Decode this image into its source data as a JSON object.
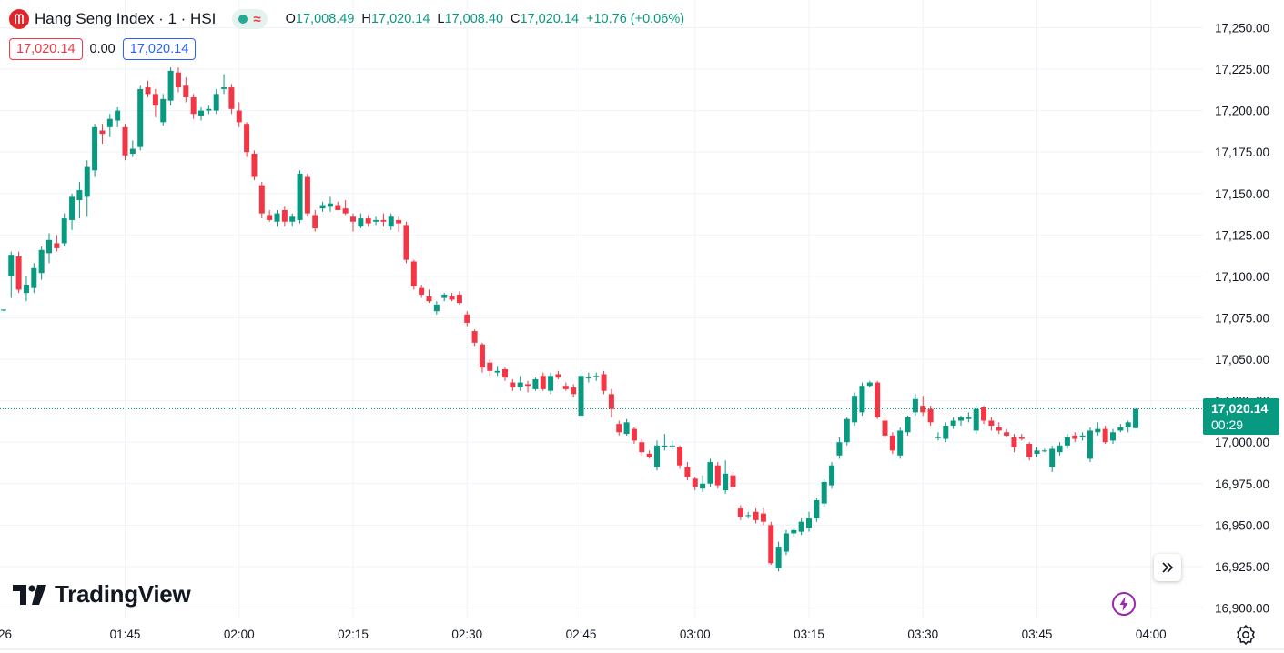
{
  "legend": {
    "title": "Hang Seng Index · 1 · HSI",
    "ohlc": [
      {
        "key": "O",
        "value": "17,008.49"
      },
      {
        "key": "H",
        "value": "17,020.14"
      },
      {
        "key": "L",
        "value": "17,008.40"
      },
      {
        "key": "C",
        "value": "17,020.14"
      }
    ],
    "change": "+10.76 (+0.06%)"
  },
  "price_boxes": {
    "sell": "17,020.14",
    "spread": "0.00",
    "buy": "17,020.14"
  },
  "last_price": {
    "value": "17,020.14",
    "countdown": "00:29"
  },
  "branding": {
    "text": "TradingView"
  },
  "colors": {
    "up": "#089981",
    "down": "#f23645",
    "accent": "#2962ff",
    "grid": "#f0f3fa"
  },
  "chart_data": {
    "type": "candlestick",
    "interval_minutes": 1,
    "y_ticks": [
      16900,
      16925,
      16950,
      16975,
      17000,
      17025,
      17050,
      17075,
      17100,
      17125,
      17150,
      17175,
      17200,
      17225,
      17250
    ],
    "y_tick_labels": [
      "16,900.00",
      "16,925.00",
      "16,950.00",
      "16,975.00",
      "17,000.00",
      "17,025.00",
      "17,050.00",
      "17,075.00",
      "17,100.00",
      "17,125.00",
      "17,150.00",
      "17,175.00",
      "17,200.00",
      "17,225.00",
      "17,250.00"
    ],
    "x_tick_labels": [
      "26",
      "01:45",
      "02:00",
      "02:15",
      "02:30",
      "02:45",
      "03:00",
      "03:15",
      "03:30",
      "03:45",
      "04:00"
    ],
    "candles": [
      {
        "t": "01:29",
        "o": 17080,
        "h": 17080,
        "l": 17079,
        "c": 17080
      },
      {
        "t": "01:30",
        "o": 17100,
        "h": 17115,
        "l": 17087,
        "c": 17113
      },
      {
        "t": "01:31",
        "o": 17112,
        "h": 17115,
        "l": 17090,
        "c": 17092
      },
      {
        "t": "01:32",
        "o": 17090,
        "h": 17100,
        "l": 17085,
        "c": 17095
      },
      {
        "t": "01:33",
        "o": 17093,
        "h": 17108,
        "l": 17090,
        "c": 17105
      },
      {
        "t": "01:34",
        "o": 17102,
        "h": 17118,
        "l": 17098,
        "c": 17116
      },
      {
        "t": "01:35",
        "o": 17114,
        "h": 17126,
        "l": 17108,
        "c": 17122
      },
      {
        "t": "01:36",
        "o": 17120,
        "h": 17125,
        "l": 17115,
        "c": 17117
      },
      {
        "t": "01:37",
        "o": 17120,
        "h": 17138,
        "l": 17118,
        "c": 17135
      },
      {
        "t": "01:38",
        "o": 17134,
        "h": 17150,
        "l": 17128,
        "c": 17148
      },
      {
        "t": "01:39",
        "o": 17146,
        "h": 17157,
        "l": 17135,
        "c": 17152
      },
      {
        "t": "01:40",
        "o": 17148,
        "h": 17170,
        "l": 17136,
        "c": 17166
      },
      {
        "t": "01:41",
        "o": 17164,
        "h": 17192,
        "l": 17160,
        "c": 17190
      },
      {
        "t": "01:42",
        "o": 17188,
        "h": 17192,
        "l": 17180,
        "c": 17186
      },
      {
        "t": "01:43",
        "o": 17190,
        "h": 17198,
        "l": 17184,
        "c": 17195
      },
      {
        "t": "01:44",
        "o": 17194,
        "h": 17202,
        "l": 17190,
        "c": 17200
      },
      {
        "t": "01:45",
        "o": 17190,
        "h": 17192,
        "l": 17170,
        "c": 17173
      },
      {
        "t": "01:46",
        "o": 17174,
        "h": 17182,
        "l": 17172,
        "c": 17177
      },
      {
        "t": "01:47",
        "o": 17178,
        "h": 17215,
        "l": 17176,
        "c": 17213
      },
      {
        "t": "01:48",
        "o": 17214,
        "h": 17218,
        "l": 17208,
        "c": 17210
      },
      {
        "t": "01:49",
        "o": 17210,
        "h": 17213,
        "l": 17196,
        "c": 17203
      },
      {
        "t": "01:50",
        "o": 17193,
        "h": 17210,
        "l": 17191,
        "c": 17207
      },
      {
        "t": "01:51",
        "o": 17206,
        "h": 17226,
        "l": 17203,
        "c": 17224
      },
      {
        "t": "01:52",
        "o": 17223,
        "h": 17226,
        "l": 17211,
        "c": 17214
      },
      {
        "t": "01:53",
        "o": 17215,
        "h": 17220,
        "l": 17205,
        "c": 17208
      },
      {
        "t": "01:54",
        "o": 17208,
        "h": 17210,
        "l": 17195,
        "c": 17198
      },
      {
        "t": "01:55",
        "o": 17197,
        "h": 17202,
        "l": 17194,
        "c": 17200
      },
      {
        "t": "01:56",
        "o": 17200,
        "h": 17203,
        "l": 17198,
        "c": 17201
      },
      {
        "t": "01:57",
        "o": 17200,
        "h": 17213,
        "l": 17198,
        "c": 17210
      },
      {
        "t": "01:58",
        "o": 17213,
        "h": 17222,
        "l": 17210,
        "c": 17214
      },
      {
        "t": "01:59",
        "o": 17214,
        "h": 17216,
        "l": 17198,
        "c": 17201
      },
      {
        "t": "02:00",
        "o": 17200,
        "h": 17205,
        "l": 17190,
        "c": 17193
      },
      {
        "t": "02:01",
        "o": 17192,
        "h": 17193,
        "l": 17172,
        "c": 17175
      },
      {
        "t": "02:02",
        "o": 17174,
        "h": 17176,
        "l": 17158,
        "c": 17160
      },
      {
        "t": "02:03",
        "o": 17155,
        "h": 17157,
        "l": 17135,
        "c": 17138
      },
      {
        "t": "02:04",
        "o": 17137,
        "h": 17140,
        "l": 17133,
        "c": 17134
      },
      {
        "t": "02:05",
        "o": 17133,
        "h": 17140,
        "l": 17130,
        "c": 17138
      },
      {
        "t": "02:06",
        "o": 17140,
        "h": 17142,
        "l": 17130,
        "c": 17133
      },
      {
        "t": "02:07",
        "o": 17133,
        "h": 17138,
        "l": 17130,
        "c": 17136
      },
      {
        "t": "02:08",
        "o": 17134,
        "h": 17164,
        "l": 17132,
        "c": 17162
      },
      {
        "t": "02:09",
        "o": 17160,
        "h": 17162,
        "l": 17136,
        "c": 17138
      },
      {
        "t": "02:10",
        "o": 17137,
        "h": 17140,
        "l": 17127,
        "c": 17129
      },
      {
        "t": "02:11",
        "o": 17141,
        "h": 17145,
        "l": 17139,
        "c": 17143
      },
      {
        "t": "02:12",
        "o": 17142,
        "h": 17148,
        "l": 17139,
        "c": 17144
      },
      {
        "t": "02:13",
        "o": 17143,
        "h": 17145,
        "l": 17140,
        "c": 17140
      },
      {
        "t": "02:14",
        "o": 17141,
        "h": 17146,
        "l": 17137,
        "c": 17138
      },
      {
        "t": "02:15",
        "o": 17136,
        "h": 17138,
        "l": 17127,
        "c": 17133
      },
      {
        "t": "02:16",
        "o": 17130,
        "h": 17138,
        "l": 17129,
        "c": 17135
      },
      {
        "t": "02:17",
        "o": 17135,
        "h": 17137,
        "l": 17130,
        "c": 17132
      },
      {
        "t": "02:18",
        "o": 17133,
        "h": 17136,
        "l": 17131,
        "c": 17134
      },
      {
        "t": "02:19",
        "o": 17134,
        "h": 17138,
        "l": 17130,
        "c": 17133
      },
      {
        "t": "02:20",
        "o": 17130,
        "h": 17138,
        "l": 17128,
        "c": 17136
      },
      {
        "t": "02:21",
        "o": 17134,
        "h": 17136,
        "l": 17127,
        "c": 17132
      },
      {
        "t": "02:22",
        "o": 17131,
        "h": 17133,
        "l": 17108,
        "c": 17110
      },
      {
        "t": "02:23",
        "o": 17109,
        "h": 17110,
        "l": 17092,
        "c": 17094
      },
      {
        "t": "02:24",
        "o": 17093,
        "h": 17095,
        "l": 17087,
        "c": 17089
      },
      {
        "t": "02:25",
        "o": 17088,
        "h": 17092,
        "l": 17084,
        "c": 17085
      },
      {
        "t": "02:26",
        "o": 17079,
        "h": 17085,
        "l": 17077,
        "c": 17083
      },
      {
        "t": "02:27",
        "o": 17087,
        "h": 17090,
        "l": 17085,
        "c": 17089
      },
      {
        "t": "02:28",
        "o": 17088,
        "h": 17090,
        "l": 17085,
        "c": 17086
      },
      {
        "t": "02:29",
        "o": 17089,
        "h": 17091,
        "l": 17083,
        "c": 17084
      },
      {
        "t": "02:30",
        "o": 17077,
        "h": 17079,
        "l": 17070,
        "c": 17072
      },
      {
        "t": "02:31",
        "o": 17067,
        "h": 17068,
        "l": 17058,
        "c": 17060
      },
      {
        "t": "02:32",
        "o": 17059,
        "h": 17060,
        "l": 17042,
        "c": 17045
      },
      {
        "t": "02:33",
        "o": 17048,
        "h": 17050,
        "l": 17040,
        "c": 17043
      },
      {
        "t": "02:34",
        "o": 17042,
        "h": 17046,
        "l": 17040,
        "c": 17043
      },
      {
        "t": "02:35",
        "o": 17044,
        "h": 17045,
        "l": 17037,
        "c": 17039
      },
      {
        "t": "02:36",
        "o": 17036,
        "h": 17038,
        "l": 17031,
        "c": 17033
      },
      {
        "t": "02:37",
        "o": 17033,
        "h": 17040,
        "l": 17031,
        "c": 17036
      },
      {
        "t": "02:38",
        "o": 17035,
        "h": 17037,
        "l": 17030,
        "c": 17034
      },
      {
        "t": "02:39",
        "o": 17032,
        "h": 17039,
        "l": 17031,
        "c": 17038
      },
      {
        "t": "02:40",
        "o": 17040,
        "h": 17042,
        "l": 17031,
        "c": 17032
      },
      {
        "t": "02:41",
        "o": 17031,
        "h": 17042,
        "l": 17029,
        "c": 17040
      },
      {
        "t": "02:42",
        "o": 17041,
        "h": 17043,
        "l": 17038,
        "c": 17039
      },
      {
        "t": "02:43",
        "o": 17034,
        "h": 17036,
        "l": 17031,
        "c": 17032
      },
      {
        "t": "02:44",
        "o": 17033,
        "h": 17035,
        "l": 17027,
        "c": 17029
      },
      {
        "t": "02:45",
        "o": 17016,
        "h": 17043,
        "l": 17014,
        "c": 17040
      },
      {
        "t": "02:46",
        "o": 17039,
        "h": 17042,
        "l": 17036,
        "c": 17039
      },
      {
        "t": "02:47",
        "o": 17040,
        "h": 17042,
        "l": 17037,
        "c": 17040
      },
      {
        "t": "02:48",
        "o": 17041,
        "h": 17043,
        "l": 17029,
        "c": 17031
      },
      {
        "t": "02:49",
        "o": 17029,
        "h": 17032,
        "l": 17015,
        "c": 17020
      },
      {
        "t": "02:50",
        "o": 17011,
        "h": 17013,
        "l": 17004,
        "c": 17006
      },
      {
        "t": "02:51",
        "o": 17005,
        "h": 17014,
        "l": 17004,
        "c": 17012
      },
      {
        "t": "02:52",
        "o": 17008,
        "h": 17009,
        "l": 16999,
        "c": 17001
      },
      {
        "t": "02:53",
        "o": 17000,
        "h": 17002,
        "l": 16992,
        "c": 16994
      },
      {
        "t": "02:54",
        "o": 16993,
        "h": 16995,
        "l": 16990,
        "c": 16991
      },
      {
        "t": "02:55",
        "o": 16985,
        "h": 17001,
        "l": 16983,
        "c": 16998
      },
      {
        "t": "02:56",
        "o": 16997,
        "h": 17005,
        "l": 16995,
        "c": 16998
      },
      {
        "t": "02:57",
        "o": 16998,
        "h": 17001,
        "l": 16996,
        "c": 16998
      },
      {
        "t": "02:58",
        "o": 16997,
        "h": 16998,
        "l": 16984,
        "c": 16986
      },
      {
        "t": "02:59",
        "o": 16985,
        "h": 16988,
        "l": 16977,
        "c": 16979
      },
      {
        "t": "03:00",
        "o": 16978,
        "h": 16979,
        "l": 16971,
        "c": 16973
      },
      {
        "t": "03:01",
        "o": 16972,
        "h": 16980,
        "l": 16970,
        "c": 16975
      },
      {
        "t": "03:02",
        "o": 16975,
        "h": 16990,
        "l": 16973,
        "c": 16988
      },
      {
        "t": "03:03",
        "o": 16986,
        "h": 16988,
        "l": 16972,
        "c": 16974
      },
      {
        "t": "03:04",
        "o": 16971,
        "h": 16989,
        "l": 16969,
        "c": 16981
      },
      {
        "t": "03:05",
        "o": 16980,
        "h": 16982,
        "l": 16971,
        "c": 16973
      },
      {
        "t": "03:06",
        "o": 16960,
        "h": 16962,
        "l": 16953,
        "c": 16955
      },
      {
        "t": "03:07",
        "o": 16956,
        "h": 16958,
        "l": 16954,
        "c": 16956
      },
      {
        "t": "03:08",
        "o": 16958,
        "h": 16960,
        "l": 16951,
        "c": 16953
      },
      {
        "t": "03:09",
        "o": 16957,
        "h": 16960,
        "l": 16950,
        "c": 16952
      },
      {
        "t": "03:10",
        "o": 16950,
        "h": 16952,
        "l": 16926,
        "c": 16927
      },
      {
        "t": "03:11",
        "o": 16924,
        "h": 16940,
        "l": 16922,
        "c": 16937
      },
      {
        "t": "03:12",
        "o": 16934,
        "h": 16947,
        "l": 16932,
        "c": 16945
      },
      {
        "t": "03:13",
        "o": 16945,
        "h": 16948,
        "l": 16943,
        "c": 16947
      },
      {
        "t": "03:14",
        "o": 16946,
        "h": 16954,
        "l": 16944,
        "c": 16952
      },
      {
        "t": "03:15",
        "o": 16948,
        "h": 16958,
        "l": 16946,
        "c": 16954
      },
      {
        "t": "03:16",
        "o": 16954,
        "h": 16966,
        "l": 16952,
        "c": 16965
      },
      {
        "t": "03:17",
        "o": 16963,
        "h": 16978,
        "l": 16961,
        "c": 16976
      },
      {
        "t": "03:18",
        "o": 16974,
        "h": 16988,
        "l": 16972,
        "c": 16986
      },
      {
        "t": "03:19",
        "o": 16992,
        "h": 17003,
        "l": 16990,
        "c": 17000
      },
      {
        "t": "03:20",
        "o": 17000,
        "h": 17015,
        "l": 16998,
        "c": 17014
      },
      {
        "t": "03:21",
        "o": 17012,
        "h": 17030,
        "l": 17010,
        "c": 17028
      },
      {
        "t": "03:22",
        "o": 17018,
        "h": 17036,
        "l": 17016,
        "c": 17034
      },
      {
        "t": "03:23",
        "o": 17034,
        "h": 17037,
        "l": 17033,
        "c": 17036
      },
      {
        "t": "03:24",
        "o": 17036,
        "h": 17037,
        "l": 17014,
        "c": 17015
      },
      {
        "t": "03:25",
        "o": 17013,
        "h": 17015,
        "l": 17002,
        "c": 17004
      },
      {
        "t": "03:26",
        "o": 17004,
        "h": 17006,
        "l": 16993,
        "c": 16995
      },
      {
        "t": "03:27",
        "o": 16992,
        "h": 17009,
        "l": 16990,
        "c": 17007
      },
      {
        "t": "03:28",
        "o": 17006,
        "h": 17016,
        "l": 17004,
        "c": 17015
      },
      {
        "t": "03:29",
        "o": 17018,
        "h": 17029,
        "l": 17016,
        "c": 17026
      },
      {
        "t": "03:30",
        "o": 17022,
        "h": 17028,
        "l": 17016,
        "c": 17018
      },
      {
        "t": "03:31",
        "o": 17020,
        "h": 17022,
        "l": 17010,
        "c": 17012
      },
      {
        "t": "03:32",
        "o": 17003,
        "h": 17006,
        "l": 17001,
        "c": 17003
      },
      {
        "t": "03:33",
        "o": 17002,
        "h": 17012,
        "l": 17000,
        "c": 17010
      },
      {
        "t": "03:34",
        "o": 17010,
        "h": 17015,
        "l": 17008,
        "c": 17013
      },
      {
        "t": "03:35",
        "o": 17013,
        "h": 17016,
        "l": 17010,
        "c": 17015
      },
      {
        "t": "03:36",
        "o": 17014,
        "h": 17018,
        "l": 17012,
        "c": 17015
      },
      {
        "t": "03:37",
        "o": 17007,
        "h": 17022,
        "l": 17005,
        "c": 17020
      },
      {
        "t": "03:38",
        "o": 17021,
        "h": 17022,
        "l": 17011,
        "c": 17013
      },
      {
        "t": "03:39",
        "o": 17013,
        "h": 17015,
        "l": 17007,
        "c": 17010
      },
      {
        "t": "03:40",
        "o": 17009,
        "h": 17012,
        "l": 17005,
        "c": 17007
      },
      {
        "t": "03:41",
        "o": 17006,
        "h": 17008,
        "l": 17003,
        "c": 17004
      },
      {
        "t": "03:42",
        "o": 17003,
        "h": 17005,
        "l": 16994,
        "c": 16997
      },
      {
        "t": "03:43",
        "o": 17003,
        "h": 17005,
        "l": 17001,
        "c": 17002
      },
      {
        "t": "03:44",
        "o": 16999,
        "h": 17000,
        "l": 16989,
        "c": 16991
      },
      {
        "t": "03:45",
        "o": 16993,
        "h": 16997,
        "l": 16991,
        "c": 16995
      },
      {
        "t": "03:46",
        "o": 16995,
        "h": 16996,
        "l": 16994,
        "c": 16995
      },
      {
        "t": "03:47",
        "o": 16985,
        "h": 16998,
        "l": 16982,
        "c": 16996
      },
      {
        "t": "03:48",
        "o": 16994,
        "h": 17000,
        "l": 16992,
        "c": 16998
      },
      {
        "t": "03:49",
        "o": 16998,
        "h": 17005,
        "l": 16996,
        "c": 17003
      },
      {
        "t": "03:50",
        "o": 17004,
        "h": 17006,
        "l": 17000,
        "c": 17002
      },
      {
        "t": "03:51",
        "o": 17003,
        "h": 17006,
        "l": 17001,
        "c": 17004
      },
      {
        "t": "03:52",
        "o": 16990,
        "h": 17009,
        "l": 16988,
        "c": 17007
      },
      {
        "t": "03:53",
        "o": 17006,
        "h": 17012,
        "l": 17004,
        "c": 17008
      },
      {
        "t": "03:54",
        "o": 17008,
        "h": 17010,
        "l": 16999,
        "c": 17000
      },
      {
        "t": "03:55",
        "o": 17001,
        "h": 17008,
        "l": 16999,
        "c": 17006
      },
      {
        "t": "03:56",
        "o": 17007,
        "h": 17011,
        "l": 17006,
        "c": 17009
      },
      {
        "t": "03:57",
        "o": 17009,
        "h": 17013,
        "l": 17006,
        "c": 17012
      },
      {
        "t": "03:58",
        "o": 17008.49,
        "h": 17020.14,
        "l": 17008.4,
        "c": 17020.14
      }
    ],
    "last_price": 17020.14,
    "grid": true
  }
}
